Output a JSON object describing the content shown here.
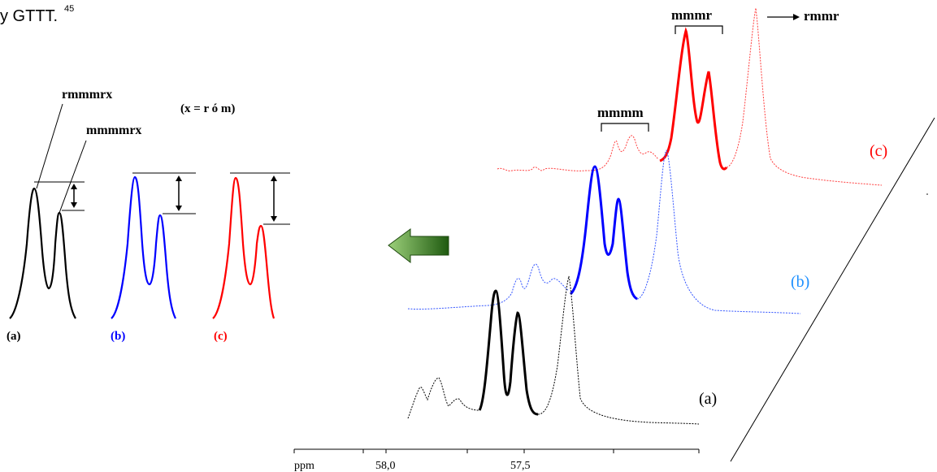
{
  "caption_fragment": "y GTTT.",
  "caption_superscript": "45",
  "left_panel": {
    "label_rmmmrx": "rmmmrx",
    "label_mmmmrx": "mmmmrx",
    "note": "(x = r ó m)",
    "labels": [
      "(a)",
      "(b)",
      "(c)"
    ]
  },
  "right_panel": {
    "label_mmmr": "mmmr",
    "label_rmmr": "rmmr",
    "label_mmmm": "mmmm",
    "trace_labels": [
      "(a)",
      "(b)",
      "(c)"
    ],
    "axis_unit": "ppm",
    "ticks": [
      "58,0",
      "57,5"
    ]
  },
  "colors": {
    "a": "#000000",
    "b": "#0000ff",
    "b_label": "#1e90ff",
    "c": "#ff0000",
    "arrow_dark": "#1f5a10",
    "arrow_light": "#9cd07a"
  },
  "arrow_icon": "left-arrow-icon"
}
